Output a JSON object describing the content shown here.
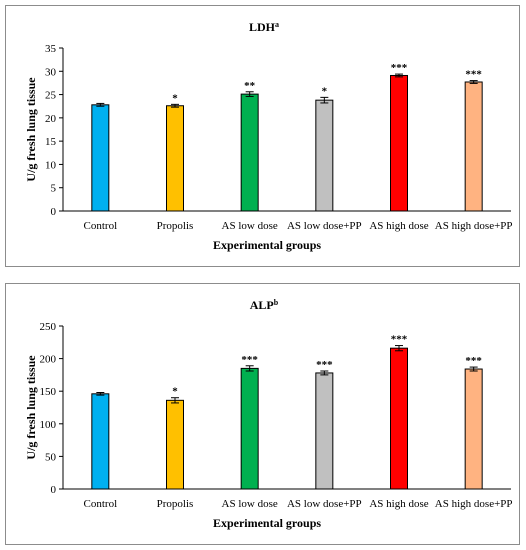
{
  "chart_data": [
    {
      "type": "bar",
      "title": "LDH",
      "title_superscript": "a",
      "xlabel": "Experimental groups",
      "ylabel": "U/g fresh lung tissue",
      "ylim": [
        0,
        35
      ],
      "yticks": [
        0,
        5,
        10,
        15,
        20,
        25,
        30,
        35
      ],
      "categories": [
        "Control",
        "Propolis",
        "AS low dose",
        "AS low dose+PP",
        "AS high dose",
        "AS high dose+PP"
      ],
      "values": [
        22.8,
        22.6,
        25.1,
        23.8,
        29.1,
        27.7
      ],
      "errors": [
        0.3,
        0.3,
        0.5,
        0.6,
        0.3,
        0.3
      ],
      "significance": [
        "",
        "*",
        "**",
        "*",
        "***",
        "***"
      ],
      "colors": [
        "#00b0f0",
        "#ffc000",
        "#00b050",
        "#c0c0c0",
        "#ff0000",
        "#ffb381"
      ],
      "grid": false,
      "legend": "none"
    },
    {
      "type": "bar",
      "title": "ALP",
      "title_superscript": "b",
      "xlabel": "Experimental groups",
      "ylabel": "U/g fresh lung tissue",
      "ylim": [
        0,
        250
      ],
      "yticks": [
        0,
        50,
        100,
        150,
        200,
        250
      ],
      "categories": [
        "Control",
        "Propolis",
        "AS low dose",
        "AS low dose+PP",
        "AS high dose",
        "AS high dose+PP"
      ],
      "values": [
        146,
        136,
        185,
        178,
        216,
        184
      ],
      "errors": [
        2,
        4,
        4,
        3,
        4,
        3
      ],
      "significance": [
        "",
        "*",
        "***",
        "***",
        "***",
        "***"
      ],
      "colors": [
        "#00b0f0",
        "#ffc000",
        "#00b050",
        "#c0c0c0",
        "#ff0000",
        "#ffb381"
      ],
      "grid": false,
      "legend": "none"
    }
  ]
}
